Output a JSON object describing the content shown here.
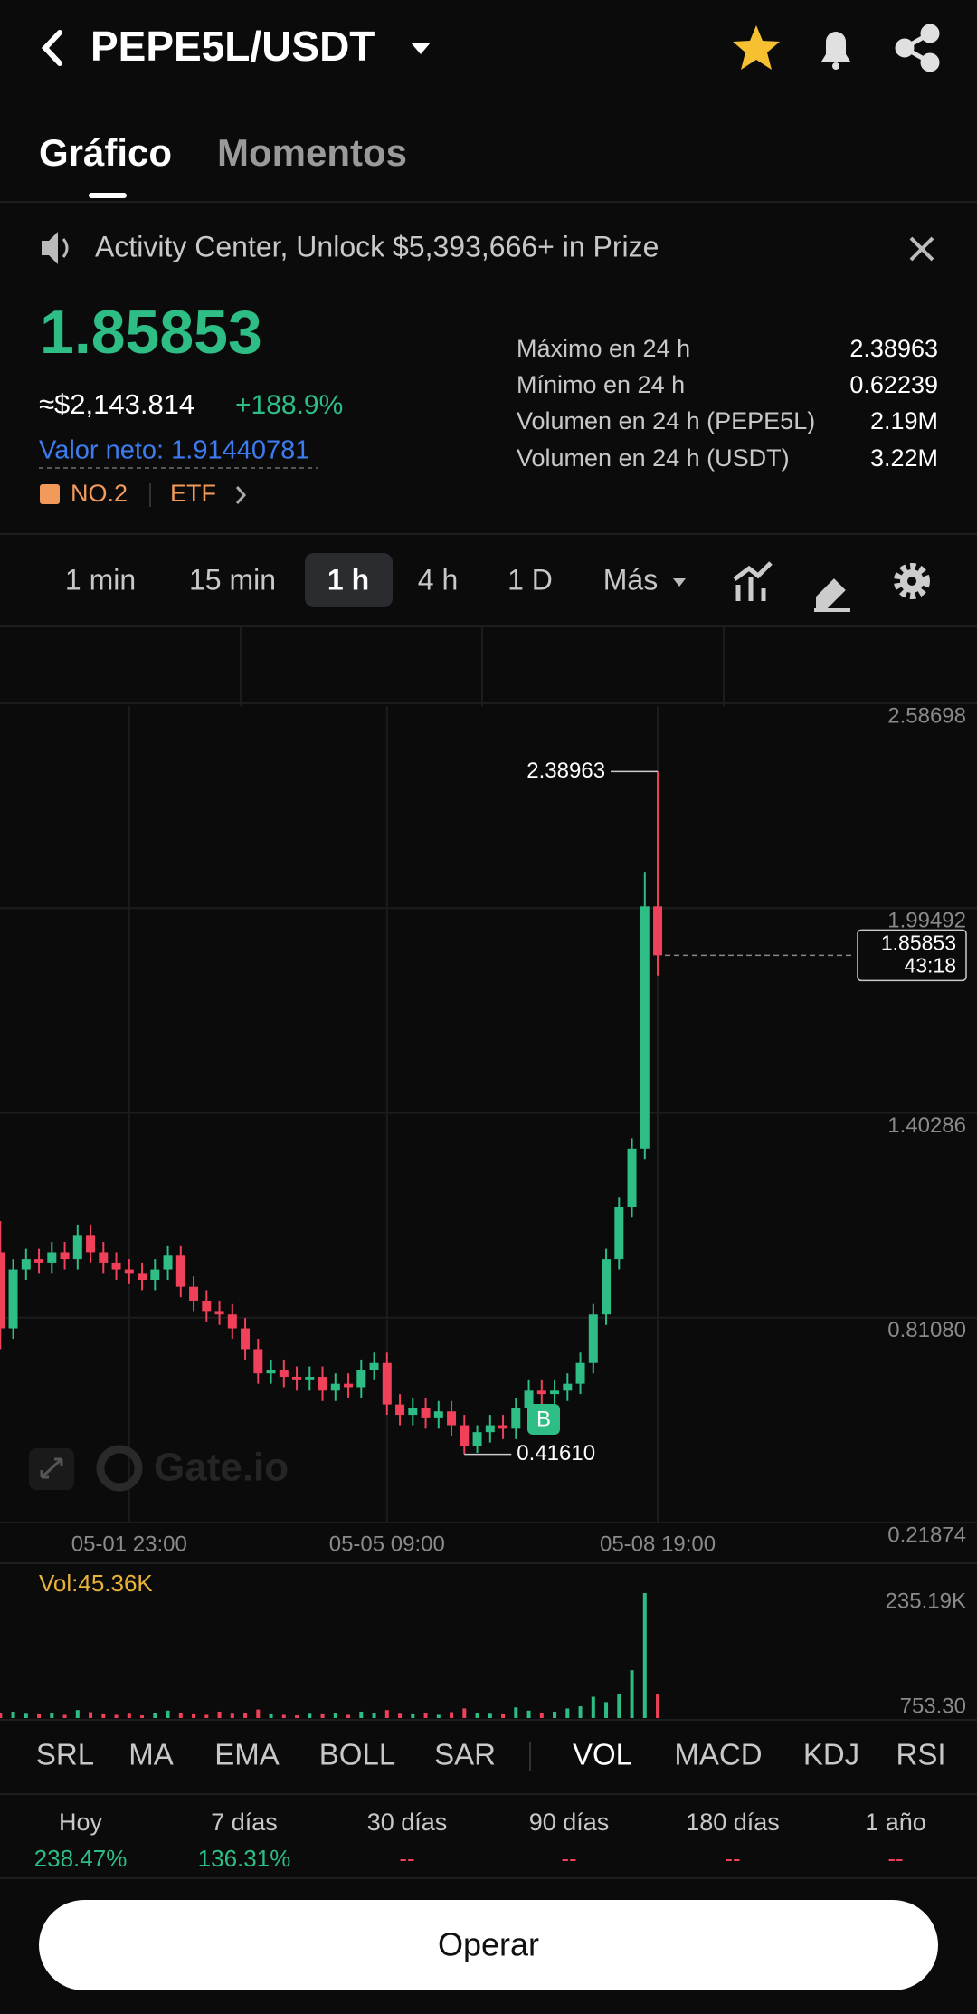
{
  "header": {
    "title": "PEPE5L/USDT"
  },
  "tabs": [
    "Gráfico",
    "Momentos"
  ],
  "banner": "Activity Center, Unlock $5,393,666+ in Prize",
  "ticker": {
    "price": "1.85853",
    "fiat": "≈$2,143.814",
    "change": "+188.9%",
    "net_value": "Valor neto: 1.91440781",
    "rank": "NO.2",
    "tag": "ETF"
  },
  "stats": [
    {
      "label": "Máximo en 24 h",
      "value": "2.38963"
    },
    {
      "label": "Mínimo en 24 h",
      "value": "0.62239"
    },
    {
      "label": "Volumen en 24 h (PEPE5L)",
      "value": "2.19M"
    },
    {
      "label": "Volumen en 24 h (USDT)",
      "value": "3.22M"
    }
  ],
  "intervals": [
    "1 min",
    "15 min",
    "1 h",
    "4 h",
    "1 D",
    "Más"
  ],
  "chart_data": [
    {
      "type": "candlestick",
      "categories": [
        null,
        null,
        null,
        null,
        null,
        null,
        null,
        null,
        null,
        null,
        "05-01 23:00",
        null,
        null,
        null,
        null,
        null,
        null,
        null,
        null,
        null,
        null,
        null,
        null,
        null,
        null,
        null,
        null,
        null,
        null,
        null,
        "05-05 09:00",
        null,
        null,
        null,
        null,
        null,
        null,
        null,
        null,
        null,
        null,
        null,
        null,
        null,
        null,
        null,
        null,
        null,
        null,
        null,
        null,
        "05-08 19:00"
      ],
      "open": [
        1.0,
        0.78,
        0.95,
        0.98,
        0.97,
        1.0,
        0.98,
        1.05,
        1.0,
        0.97,
        0.95,
        0.94,
        0.92,
        0.95,
        0.99,
        0.9,
        0.86,
        0.83,
        0.82,
        0.78,
        0.72,
        0.65,
        0.66,
        0.64,
        0.63,
        0.64,
        0.6,
        0.62,
        0.61,
        0.66,
        0.68,
        0.56,
        0.53,
        0.55,
        0.52,
        0.54,
        0.5,
        0.44,
        0.48,
        0.5,
        0.49,
        0.55,
        0.6,
        0.59,
        0.6,
        0.62,
        0.68,
        0.82,
        0.98,
        1.13,
        1.3,
        2.0
      ],
      "high": [
        1.09,
        0.98,
        1.01,
        1.01,
        1.03,
        1.03,
        1.08,
        1.08,
        1.03,
        1.0,
        0.98,
        0.97,
        0.98,
        1.02,
        1.02,
        0.93,
        0.89,
        0.86,
        0.85,
        0.81,
        0.75,
        0.69,
        0.69,
        0.67,
        0.67,
        0.67,
        0.65,
        0.65,
        0.69,
        0.71,
        0.71,
        0.59,
        0.58,
        0.58,
        0.57,
        0.57,
        0.53,
        0.5,
        0.53,
        0.53,
        0.58,
        0.63,
        0.63,
        0.63,
        0.65,
        0.71,
        0.85,
        1.01,
        1.16,
        1.33,
        2.1,
        2.38963
      ],
      "low": [
        0.72,
        0.75,
        0.92,
        0.94,
        0.94,
        0.95,
        0.95,
        0.97,
        0.94,
        0.92,
        0.91,
        0.89,
        0.89,
        0.92,
        0.87,
        0.83,
        0.8,
        0.79,
        0.75,
        0.69,
        0.62,
        0.62,
        0.61,
        0.6,
        0.6,
        0.57,
        0.57,
        0.58,
        0.58,
        0.63,
        0.53,
        0.5,
        0.5,
        0.49,
        0.49,
        0.47,
        0.4161,
        0.42,
        0.45,
        0.46,
        0.46,
        0.52,
        0.56,
        0.56,
        0.57,
        0.59,
        0.65,
        0.79,
        0.95,
        1.1,
        1.27,
        1.8
      ],
      "close": [
        0.78,
        0.95,
        0.98,
        0.97,
        1.0,
        0.98,
        1.05,
        1.0,
        0.97,
        0.95,
        0.94,
        0.92,
        0.95,
        0.99,
        0.9,
        0.86,
        0.83,
        0.82,
        0.78,
        0.72,
        0.65,
        0.66,
        0.64,
        0.63,
        0.64,
        0.6,
        0.62,
        0.61,
        0.66,
        0.68,
        0.56,
        0.53,
        0.55,
        0.52,
        0.54,
        0.5,
        0.44,
        0.48,
        0.5,
        0.49,
        0.55,
        0.6,
        0.59,
        0.6,
        0.62,
        0.68,
        0.82,
        0.98,
        1.13,
        1.3,
        2.0,
        1.85853
      ],
      "ylim": [
        0.21874,
        2.58698
      ],
      "yticks": [
        2.58698,
        1.99492,
        1.40286,
        {
          "value": 0.8108,
          "label": "0.81080"
        },
        0.21874
      ],
      "grid": true,
      "high_label": "2.38963",
      "low_label": "0.41610",
      "countdown": "43:18",
      "buy_marker": "B",
      "watermark": "Gate.io",
      "up_color": "#2dbd85",
      "down_color": "#f0405a"
    },
    {
      "type": "bar",
      "title": "Vol:45.36K",
      "values": [
        9000,
        12000,
        8000,
        7000,
        9000,
        6000,
        15000,
        11000,
        7000,
        6000,
        8000,
        5000,
        9000,
        14000,
        10000,
        7000,
        6000,
        12000,
        8000,
        9000,
        16000,
        7000,
        6000,
        5000,
        8000,
        7000,
        9000,
        6000,
        12000,
        10000,
        15000,
        8000,
        7000,
        9000,
        6000,
        11000,
        18000,
        9000,
        8000,
        7000,
        20000,
        14000,
        9000,
        12000,
        18000,
        22000,
        40000,
        30000,
        45000,
        90000,
        235190,
        45360
      ],
      "ylim": [
        0,
        235190
      ],
      "yticks": [
        {
          "value": 235190,
          "label": "235.19K"
        },
        {
          "value": 753.3,
          "label": "753.30"
        }
      ]
    }
  ],
  "indicators": [
    "SRL",
    "MA",
    "EMA",
    "BOLL",
    "SAR",
    "VOL",
    "MACD",
    "KDJ",
    "RSI"
  ],
  "performance": [
    {
      "period": "Hoy",
      "value": "238.47%"
    },
    {
      "period": "7 días",
      "value": "136.31%"
    },
    {
      "period": "30 días",
      "value": "--"
    },
    {
      "period": "90 días",
      "value": "--"
    },
    {
      "period": "180 días",
      "value": "--"
    },
    {
      "period": "1 año",
      "value": "--"
    }
  ],
  "button": "Operar"
}
